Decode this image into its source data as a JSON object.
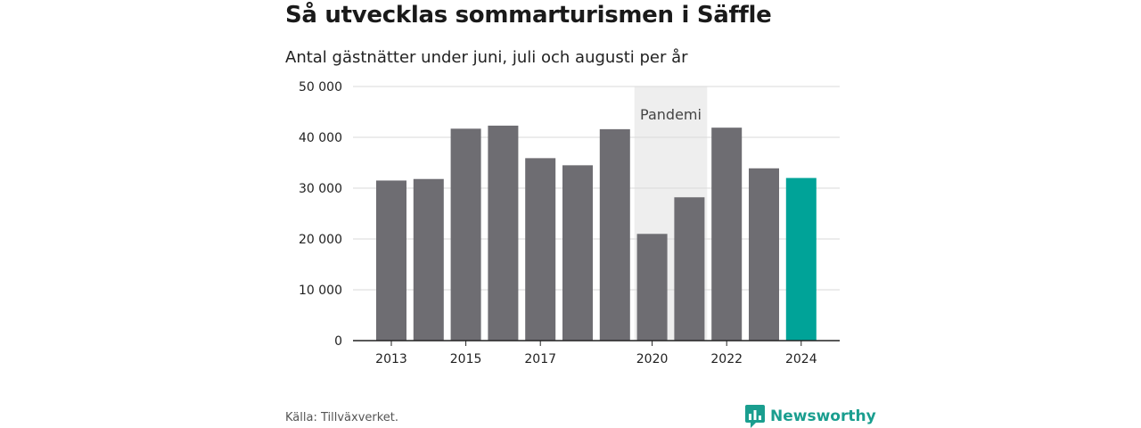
{
  "header": {
    "title": "Så utvecklas sommarturismen i Säffle",
    "subtitle": "Antal gästnätter under juni, juli och augusti per år"
  },
  "footer": {
    "source": "Källa: Tillväxverket.",
    "brand": "Newsworthy"
  },
  "colors": {
    "bar": "#6e6d72",
    "highlight": "#00a398",
    "band": "#eeeeee",
    "grid": "#d9d9d9",
    "axis": "#222222",
    "brand": "#1a9e8f"
  },
  "chart_data": {
    "type": "bar",
    "categories": [
      "2013",
      "2014",
      "2015",
      "2016",
      "2017",
      "2018",
      "2019",
      "2020",
      "2021",
      "2022",
      "2023",
      "2024"
    ],
    "values": [
      31500,
      31800,
      41700,
      42300,
      35900,
      34500,
      41600,
      21000,
      28200,
      41900,
      33900,
      32000
    ],
    "highlight_category": "2024",
    "x_tick_labels": [
      "2013",
      "2015",
      "2017",
      "2020",
      "2022",
      "2024"
    ],
    "y_ticks": [
      0,
      10000,
      20000,
      30000,
      40000,
      50000
    ],
    "y_tick_labels": [
      "0",
      "10 000",
      "20 000",
      "30 000",
      "40 000",
      "50 000"
    ],
    "ylim": [
      0,
      50000
    ],
    "grid": true,
    "annotation": {
      "label": "Pandemi",
      "from_category": "2020",
      "to_category": "2021"
    }
  }
}
